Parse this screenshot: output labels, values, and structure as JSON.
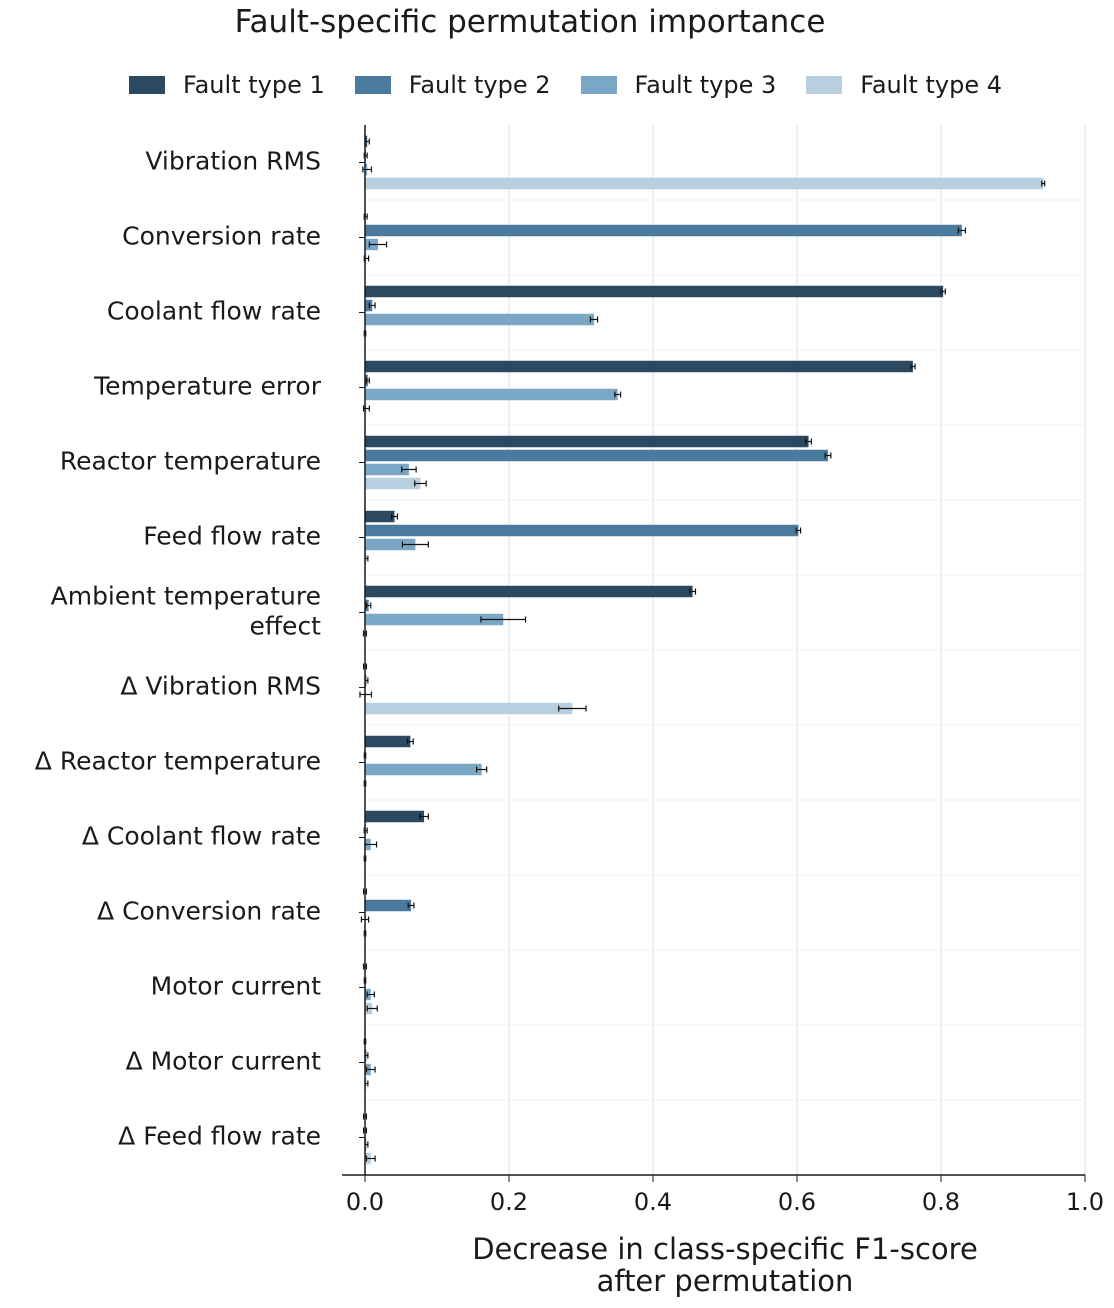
{
  "chart_data": {
    "type": "bar",
    "orientation": "horizontal",
    "title": "Fault-specific permutation importance",
    "xlabel_lines": [
      "Decrease in class-specific F1-score",
      "after permutation"
    ],
    "xlim": [
      0.0,
      1.0
    ],
    "xticks": [
      "0.0",
      "0.2",
      "0.4",
      "0.6",
      "0.8",
      "1.0"
    ],
    "grid": "vertical",
    "legend_position": "top",
    "categories": [
      "Vibration RMS",
      "Conversion rate",
      "Coolant flow rate",
      "Temperature error",
      "Reactor temperature",
      "Feed flow rate",
      "Ambient temperature effect",
      "Δ Vibration RMS",
      "Δ Reactor temperature",
      "Δ Coolant flow rate",
      "Δ Conversion rate",
      "Motor current",
      "Δ Motor current",
      "Δ Feed flow rate"
    ],
    "category_lines": [
      [
        "Vibration RMS"
      ],
      [
        "Conversion rate"
      ],
      [
        "Coolant flow rate"
      ],
      [
        "Temperature error"
      ],
      [
        "Reactor temperature"
      ],
      [
        "Feed flow rate"
      ],
      [
        "Ambient temperature",
        "effect"
      ],
      [
        "Δ Vibration RMS"
      ],
      [
        "Δ Reactor temperature"
      ],
      [
        "Δ Coolant flow rate"
      ],
      [
        "Δ Conversion rate"
      ],
      [
        "Motor current"
      ],
      [
        "Δ Motor current"
      ],
      [
        "Δ Feed flow rate"
      ]
    ],
    "series": [
      {
        "name": "Fault type 1",
        "color": "#2b4a62",
        "values": [
          0.003,
          0.001,
          0.803,
          0.761,
          0.616,
          0.041,
          0.455,
          0.0,
          0.063,
          0.082,
          0.0,
          0.0,
          0.0,
          0.0
        ],
        "errors": [
          0.003,
          0.002,
          0.003,
          0.003,
          0.004,
          0.004,
          0.004,
          0.002,
          0.004,
          0.006,
          0.002,
          0.002,
          0.001,
          0.002
        ]
      },
      {
        "name": "Fault type 2",
        "color": "#4a7a9d",
        "values": [
          0.001,
          0.829,
          0.01,
          0.004,
          0.643,
          0.602,
          0.005,
          0.002,
          0.0,
          0.001,
          0.064,
          0.0,
          0.002,
          0.0
        ],
        "errors": [
          0.002,
          0.005,
          0.004,
          0.002,
          0.004,
          0.003,
          0.003,
          0.002,
          0.001,
          0.002,
          0.004,
          0.001,
          0.002,
          0.002
        ]
      },
      {
        "name": "Fault type 3",
        "color": "#7aa7c6",
        "values": [
          0.003,
          0.018,
          0.318,
          0.351,
          0.061,
          0.07,
          0.192,
          0.001,
          0.162,
          0.008,
          0.0,
          0.008,
          0.008,
          0.002
        ],
        "errors": [
          0.006,
          0.012,
          0.005,
          0.004,
          0.01,
          0.018,
          0.031,
          0.008,
          0.007,
          0.008,
          0.005,
          0.005,
          0.006,
          0.002
        ]
      },
      {
        "name": "Fault type 4",
        "color": "#b8cfdf",
        "values": [
          0.942,
          0.002,
          0.0,
          0.002,
          0.077,
          0.002,
          0.0,
          0.288,
          0.0,
          0.0,
          0.0,
          0.01,
          0.002,
          0.008
        ],
        "errors": [
          0.002,
          0.003,
          0.001,
          0.004,
          0.008,
          0.002,
          0.002,
          0.019,
          0.001,
          0.001,
          0.001,
          0.007,
          0.002,
          0.006
        ]
      }
    ]
  }
}
